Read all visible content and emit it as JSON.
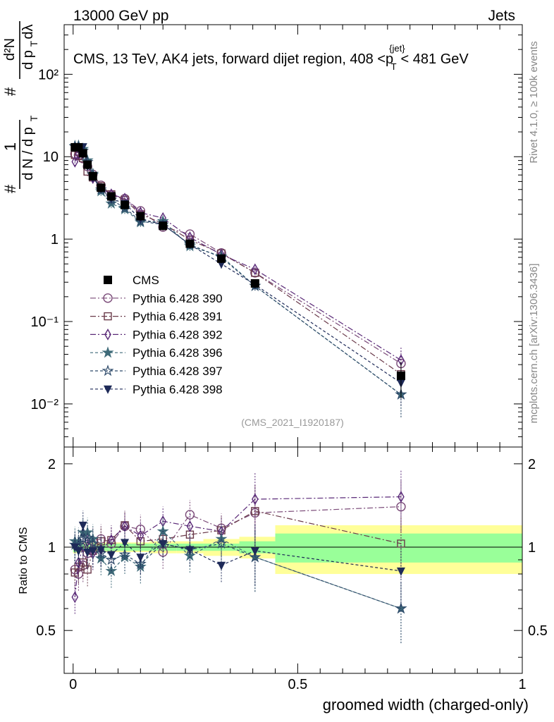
{
  "header": {
    "left": "13000 GeV pp",
    "right": "Jets"
  },
  "side": {
    "upper": "Rivet 4.1.0, ≥ 100k events",
    "lower": "mcplots.cern.ch [arXiv:1306.3436]"
  },
  "chart_data": {
    "type": "line",
    "title": "CMS, 13 TeV, AK4 jets, forward dijet region, 408 <p_T^{jet}< 481 GeV",
    "title_parts": {
      "main": "CMS, 13 TeV, AK4 jets, forward dijet region, 408 <p",
      "sup": "{jet}",
      "sub": "T",
      "tail": "< 481 GeV"
    },
    "analysis_label": "(CMS_2021_I1920187)",
    "xlabel": "groomed width (charged-only)",
    "ylabel_upper": "1/(dN/dp_T) d²N/(dp_T dλ)",
    "ylabel_lower": "Ratio to CMS",
    "ylim_upper": [
      0.003,
      400
    ],
    "ylim_lower": [
      0.35,
      2.3
    ],
    "xlim": [
      -0.02,
      1.0
    ],
    "x_ticks": [
      "0",
      "0.5",
      "1"
    ],
    "y_ticks_upper": [
      "10⁻²",
      "10⁻¹",
      "1",
      "10",
      "10²"
    ],
    "y_ticks_lower": [
      "0.5",
      "1",
      "2"
    ],
    "x": [
      0.004,
      0.012,
      0.022,
      0.032,
      0.044,
      0.062,
      0.085,
      0.115,
      0.15,
      0.2,
      0.26,
      0.33,
      0.405,
      0.73
    ],
    "band_edges": [
      0,
      0.008,
      0.016,
      0.028,
      0.036,
      0.052,
      0.072,
      0.1,
      0.13,
      0.17,
      0.23,
      0.29,
      0.37,
      0.45,
      1.0
    ],
    "stat_band": [
      0.04,
      0.03,
      0.03,
      0.03,
      0.03,
      0.03,
      0.03,
      0.03,
      0.03,
      0.03,
      0.03,
      0.03,
      0.05,
      0.12
    ],
    "total_band": [
      0.05,
      0.04,
      0.04,
      0.04,
      0.04,
      0.04,
      0.04,
      0.04,
      0.04,
      0.05,
      0.05,
      0.07,
      0.09,
      0.2
    ],
    "series": [
      {
        "name": "CMS",
        "color": "#000000",
        "marker": "square",
        "dash": "",
        "values": [
          13.0,
          13.0,
          11.0,
          8.0,
          5.8,
          4.2,
          3.3,
          2.6,
          1.9,
          1.45,
          0.88,
          0.58,
          0.29,
          0.022
        ],
        "ratio": [
          1.0,
          1.0,
          1.0,
          1.0,
          1.0,
          1.0,
          1.0,
          1.0,
          1.0,
          1.0,
          1.0,
          1.0,
          1.0,
          1.0
        ]
      },
      {
        "name": "Pythia 6.428 390",
        "color": "#7a4a78",
        "marker": "circle",
        "dash": "8,3,2,3",
        "values": [
          10.8,
          10.4,
          9.5,
          7.6,
          6.1,
          4.5,
          3.4,
          3.1,
          2.2,
          1.4,
          1.15,
          0.68,
          0.39,
          0.031
        ],
        "ratio": [
          0.83,
          0.8,
          0.86,
          0.95,
          1.05,
          1.07,
          1.03,
          1.19,
          1.16,
          0.96,
          1.31,
          1.17,
          1.33,
          1.4
        ]
      },
      {
        "name": "Pythia 6.428 391",
        "color": "#6a3a4a",
        "marker": "open-square",
        "dash": "8,3,2,3",
        "values": [
          10.5,
          10.2,
          9.6,
          6.6,
          5.6,
          4.4,
          3.5,
          3.0,
          2.0,
          1.55,
          0.98,
          0.67,
          0.39,
          0.023
        ],
        "ratio": [
          0.81,
          0.85,
          0.88,
          0.83,
          0.97,
          1.05,
          1.06,
          1.2,
          1.05,
          1.07,
          1.11,
          1.15,
          1.35,
          1.03
        ]
      },
      {
        "name": "Pythia 6.428 392",
        "color": "#5a2a78",
        "marker": "diamond",
        "dash": "8,3,2,3",
        "values": [
          8.7,
          10.8,
          11.0,
          8.4,
          5.5,
          4.1,
          3.5,
          3.1,
          2.1,
          1.8,
          1.05,
          0.65,
          0.43,
          0.034
        ],
        "ratio": [
          0.66,
          0.88,
          1.0,
          1.05,
          0.95,
          0.98,
          1.06,
          1.19,
          1.1,
          1.24,
          1.19,
          1.14,
          1.49,
          1.52
        ]
      },
      {
        "name": "Pythia 6.428 396",
        "color": "#3e6a78",
        "marker": "star",
        "dash": "4,3",
        "values": [
          13.5,
          13.6,
          12.4,
          9.0,
          6.2,
          3.8,
          2.7,
          2.3,
          1.6,
          1.65,
          0.82,
          0.62,
          0.27,
          0.013
        ],
        "ratio": [
          1.05,
          1.04,
          1.13,
          1.13,
          1.07,
          0.91,
          0.82,
          0.92,
          0.85,
          1.14,
          0.93,
          1.07,
          0.92,
          0.6
        ]
      },
      {
        "name": "Pythia 6.428 397",
        "color": "#2e4a6a",
        "marker": "open-star",
        "dash": "4,3",
        "values": [
          13.3,
          13.2,
          11.8,
          8.6,
          6.0,
          4.0,
          3.0,
          2.4,
          1.65,
          1.5,
          0.86,
          0.6,
          0.27,
          0.013
        ],
        "ratio": [
          1.02,
          1.02,
          1.07,
          1.08,
          1.03,
          0.95,
          0.9,
          0.94,
          0.87,
          1.03,
          0.98,
          1.03,
          0.92,
          0.6
        ]
      },
      {
        "name": "Pythia 6.428 398",
        "color": "#1e2a58",
        "marker": "triangle-down",
        "dash": "4,3",
        "values": [
          13.0,
          12.6,
          13.2,
          7.7,
          5.6,
          4.1,
          3.1,
          2.7,
          1.75,
          1.5,
          0.86,
          0.5,
          0.28,
          0.018
        ],
        "ratio": [
          1.0,
          0.97,
          1.2,
          0.96,
          0.97,
          0.98,
          0.94,
          1.04,
          0.92,
          1.03,
          0.98,
          0.86,
          0.97,
          0.82
        ]
      }
    ]
  }
}
